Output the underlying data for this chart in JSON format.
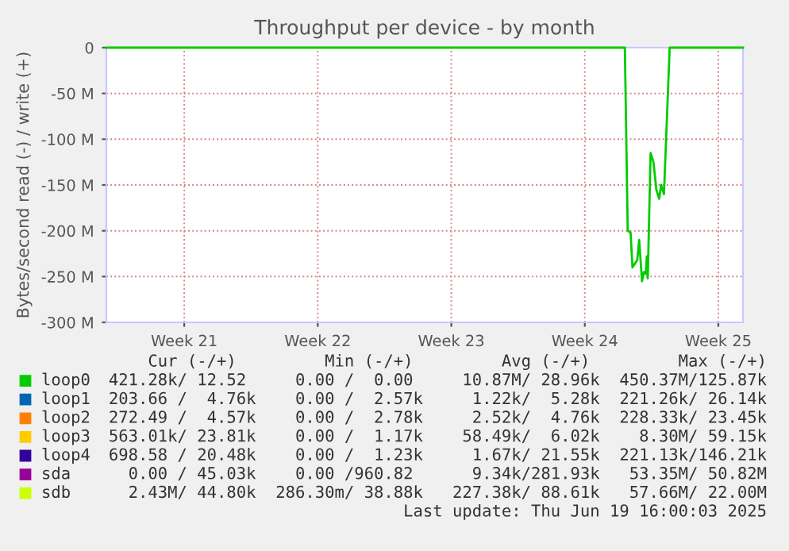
{
  "chart_data": {
    "type": "line",
    "title": "Throughput per device - by month",
    "ylabel": "Bytes/second read (-) / write (+)",
    "xlim": [
      "2025-05-18T10:00",
      "2025-06-20T19:00"
    ],
    "xticks": [
      {
        "value": "2025-05-22T12:00",
        "label": "Week 21"
      },
      {
        "value": "2025-05-29T12:00",
        "label": "Week 22"
      },
      {
        "value": "2025-06-05T12:00",
        "label": "Week 23"
      },
      {
        "value": "2025-06-12T12:00",
        "label": "Week 24"
      },
      {
        "value": "2025-06-19T12:00",
        "label": "Week 25"
      }
    ],
    "ylim": [
      -300,
      0
    ],
    "yticks": [
      {
        "value": -300,
        "label": "-300 M"
      },
      {
        "value": -250,
        "label": "-250 M"
      },
      {
        "value": -200,
        "label": "-200 M"
      },
      {
        "value": -150,
        "label": "-150 M"
      },
      {
        "value": -100,
        "label": "-100 M"
      },
      {
        "value": -50,
        "label": "-50 M"
      },
      0
    ],
    "grid": true,
    "legend": "bottom",
    "series": [
      {
        "name": "loop0",
        "color": "#00cc00",
        "x": [
          "2025-05-18T10:00",
          "2025-06-14T14:24",
          "2025-06-14T18:00",
          "2025-06-14T21:36",
          "2025-06-15T00:00",
          "2025-06-15T06:00",
          "2025-06-15T08:24",
          "2025-06-15T12:00",
          "2025-06-15T14:24",
          "2025-06-15T16:48",
          "2025-06-15T18:00",
          "2025-06-15T19:12",
          "2025-06-15T22:48",
          "2025-06-16T02:24",
          "2025-06-16T06:00",
          "2025-06-16T09:36",
          "2025-06-16T12:00",
          "2025-06-16T15:36",
          "2025-06-16T22:48",
          "2025-06-20T19:00"
        ],
        "values": [
          0,
          0,
          -200,
          -202,
          -240,
          -232,
          -210,
          -255,
          -245,
          -247,
          -228,
          -252,
          -115,
          -125,
          -155,
          -165,
          -150,
          -160,
          0,
          0
        ]
      },
      {
        "name": "loop1",
        "color": "#0066b3"
      },
      {
        "name": "loop2",
        "color": "#ff8000"
      },
      {
        "name": "loop3",
        "color": "#ffcc00"
      },
      {
        "name": "loop4",
        "color": "#330099"
      },
      {
        "name": "sda",
        "color": "#990099"
      },
      {
        "name": "sdb",
        "color": "#ccff00"
      }
    ],
    "annotations": [
      "Cur (-/+)         Min (-/+)         Avg (-/+)         Max (-/+)",
      "421.28k/ 12.52     0.00 /  0.00     10.87M/ 28.96k  450.37M/125.87k",
      "203.66 /  4.76k    0.00 /  2.57k     1.22k/  5.28k  221.26k/ 26.14k",
      "272.49 /  4.57k    0.00 /  2.78k     2.52k/  4.76k  228.33k/ 23.45k",
      "563.01k/ 23.81k    0.00 /  1.17k    58.49k/  6.02k    8.30M/ 59.15k",
      "698.58 / 20.48k    0.00 /  1.23k     1.67k/ 21.55k  221.13k/146.21k",
      "  0.00 / 45.03k    0.00 /960.82      9.34k/281.93k   53.35M/ 50.82M",
      "  2.43M/ 44.80k  286.30m/ 38.88k   227.38k/ 88.61k   57.66M/ 22.00M",
      "Last update: Thu Jun 19 16:00:03 2025"
    ]
  }
}
